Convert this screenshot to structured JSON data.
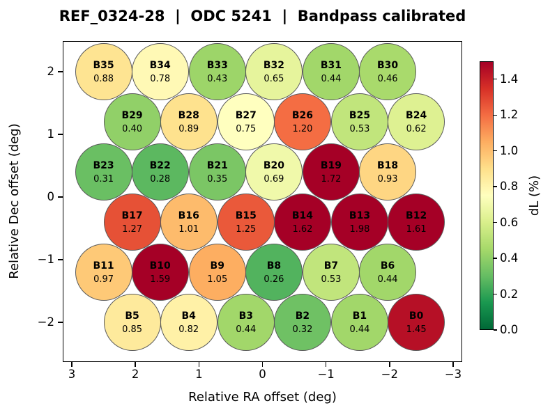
{
  "figure": {
    "title": "REF_0324-28  |  ODC 5241  |  Bandpass calibrated"
  },
  "chart_data": {
    "type": "scatter",
    "subtype": "hex-beam-map",
    "title": "REF_0324-28  |  ODC 5241  |  Bandpass calibrated",
    "xlabel": "Relative RA offset (deg)",
    "ylabel": "Relative Dec offset (deg)",
    "xlim": [
      3.15,
      -3.15
    ],
    "ylim": [
      -2.62,
      2.49
    ],
    "x_axis_inverted": true,
    "grid": false,
    "x_ticks": [
      3,
      2,
      1,
      0,
      -1,
      -2,
      -3
    ],
    "x_tick_labels": [
      "3",
      "2",
      "1",
      "0",
      "−1",
      "−2",
      "−3"
    ],
    "y_ticks": [
      2,
      1,
      0,
      -1,
      -2
    ],
    "y_tick_labels": [
      "2",
      "1",
      "0",
      "−1",
      "−2"
    ],
    "marker_radius_deg": 0.45,
    "marker_edge_color": "#5a5a5a",
    "colorbar": {
      "label": "dL (%)",
      "vmin": 0.0,
      "vmax": 1.5,
      "ticks": [
        0.0,
        0.2,
        0.4,
        0.6,
        0.8,
        1.0,
        1.2,
        1.4
      ],
      "tick_labels": [
        "0.0",
        "0.2",
        "0.4",
        "0.6",
        "0.8",
        "1.0",
        "1.2",
        "1.4"
      ],
      "colormap": "RdYlGn_r",
      "anchors_red_to_green": [
        "#a50026",
        "#d73027",
        "#f46d43",
        "#fdae61",
        "#fee08b",
        "#ffffbf",
        "#d9ef8b",
        "#a6d96a",
        "#66bd63",
        "#1a9850",
        "#006837"
      ]
    },
    "beams": [
      {
        "id": "B35",
        "ra": 2.5,
        "dec": 2.0,
        "value": 0.88
      },
      {
        "id": "B34",
        "ra": 1.61,
        "dec": 2.0,
        "value": 0.78
      },
      {
        "id": "B33",
        "ra": 0.71,
        "dec": 2.0,
        "value": 0.43
      },
      {
        "id": "B32",
        "ra": -0.18,
        "dec": 2.0,
        "value": 0.65
      },
      {
        "id": "B31",
        "ra": -1.08,
        "dec": 2.0,
        "value": 0.44
      },
      {
        "id": "B30",
        "ra": -1.97,
        "dec": 2.0,
        "value": 0.46
      },
      {
        "id": "B29",
        "ra": 2.05,
        "dec": 1.2,
        "value": 0.4
      },
      {
        "id": "B28",
        "ra": 1.16,
        "dec": 1.2,
        "value": 0.89
      },
      {
        "id": "B27",
        "ra": 0.26,
        "dec": 1.2,
        "value": 0.75
      },
      {
        "id": "B26",
        "ra": -0.63,
        "dec": 1.2,
        "value": 1.2
      },
      {
        "id": "B25",
        "ra": -1.53,
        "dec": 1.2,
        "value": 0.53
      },
      {
        "id": "B24",
        "ra": -2.42,
        "dec": 1.2,
        "value": 0.62
      },
      {
        "id": "B23",
        "ra": 2.5,
        "dec": 0.4,
        "value": 0.31
      },
      {
        "id": "B22",
        "ra": 1.61,
        "dec": 0.4,
        "value": 0.28
      },
      {
        "id": "B21",
        "ra": 0.71,
        "dec": 0.4,
        "value": 0.35
      },
      {
        "id": "B20",
        "ra": -0.18,
        "dec": 0.4,
        "value": 0.69
      },
      {
        "id": "B19",
        "ra": -1.08,
        "dec": 0.4,
        "value": 1.72
      },
      {
        "id": "B18",
        "ra": -1.97,
        "dec": 0.4,
        "value": 0.93
      },
      {
        "id": "B17",
        "ra": 2.05,
        "dec": -0.4,
        "value": 1.27
      },
      {
        "id": "B16",
        "ra": 1.16,
        "dec": -0.4,
        "value": 1.01
      },
      {
        "id": "B15",
        "ra": 0.26,
        "dec": -0.4,
        "value": 1.25
      },
      {
        "id": "B14",
        "ra": -0.63,
        "dec": -0.4,
        "value": 1.62
      },
      {
        "id": "B13",
        "ra": -1.53,
        "dec": -0.4,
        "value": 1.98
      },
      {
        "id": "B12",
        "ra": -2.42,
        "dec": -0.4,
        "value": 1.61
      },
      {
        "id": "B11",
        "ra": 2.5,
        "dec": -1.2,
        "value": 0.97
      },
      {
        "id": "B10",
        "ra": 1.61,
        "dec": -1.2,
        "value": 1.59
      },
      {
        "id": "B9",
        "ra": 0.71,
        "dec": -1.2,
        "value": 1.05
      },
      {
        "id": "B8",
        "ra": -0.18,
        "dec": -1.2,
        "value": 0.26
      },
      {
        "id": "B7",
        "ra": -1.08,
        "dec": -1.2,
        "value": 0.53
      },
      {
        "id": "B6",
        "ra": -1.97,
        "dec": -1.2,
        "value": 0.44
      },
      {
        "id": "B5",
        "ra": 2.05,
        "dec": -2.0,
        "value": 0.85
      },
      {
        "id": "B4",
        "ra": 1.16,
        "dec": -2.0,
        "value": 0.82
      },
      {
        "id": "B3",
        "ra": 0.26,
        "dec": -2.0,
        "value": 0.44
      },
      {
        "id": "B2",
        "ra": -0.63,
        "dec": -2.0,
        "value": 0.32
      },
      {
        "id": "B1",
        "ra": -1.53,
        "dec": -2.0,
        "value": 0.44
      },
      {
        "id": "B0",
        "ra": -2.42,
        "dec": -2.0,
        "value": 1.45
      }
    ]
  }
}
